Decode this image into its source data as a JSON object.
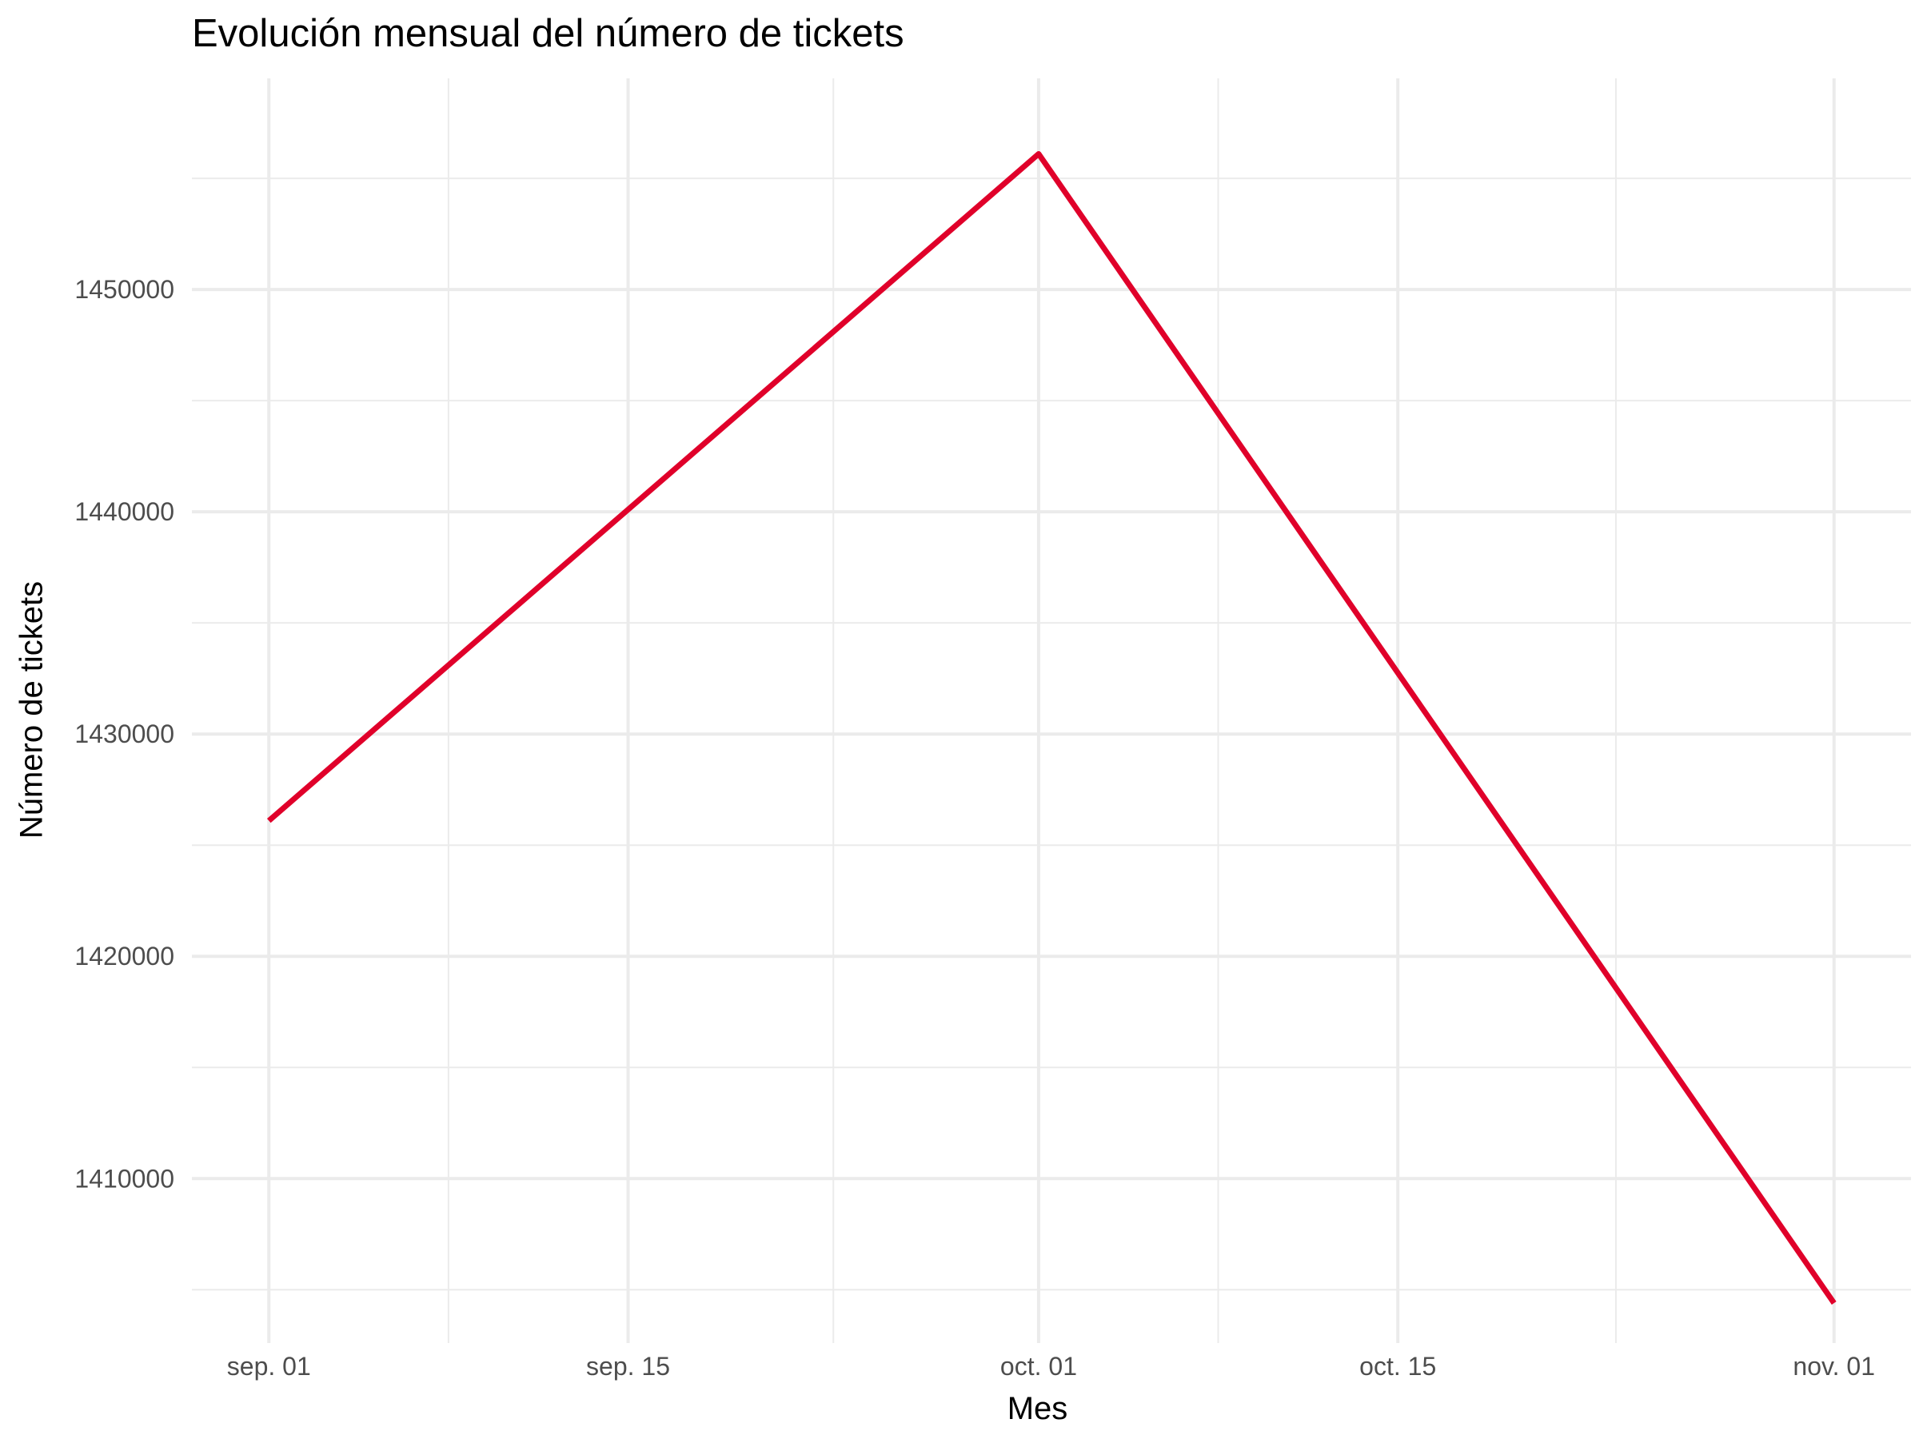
{
  "chart_data": {
    "type": "line",
    "title": "Evolución mensual del número de tickets",
    "xlabel": "Mes",
    "ylabel": "Número de tickets",
    "x_ticks": [
      {
        "date": "2023-09-01",
        "label": "sep. 01"
      },
      {
        "date": "2023-09-15",
        "label": "sep. 15"
      },
      {
        "date": "2023-10-01",
        "label": "oct. 01"
      },
      {
        "date": "2023-10-15",
        "label": "oct. 15"
      },
      {
        "date": "2023-11-01",
        "label": "nov. 01"
      }
    ],
    "y_ticks": [
      1410000,
      1420000,
      1430000,
      1440000,
      1450000
    ],
    "ylim": [
      1402600,
      1459500
    ],
    "xlim": [
      "2023-08-29",
      "2023-11-04"
    ],
    "grid": true,
    "series": [
      {
        "color": "#E0002A",
        "points": [
          {
            "x": "2023-09-01",
            "y": 1426100
          },
          {
            "x": "2023-10-01",
            "y": 1456100
          },
          {
            "x": "2023-11-01",
            "y": 1404400
          }
        ]
      }
    ]
  }
}
